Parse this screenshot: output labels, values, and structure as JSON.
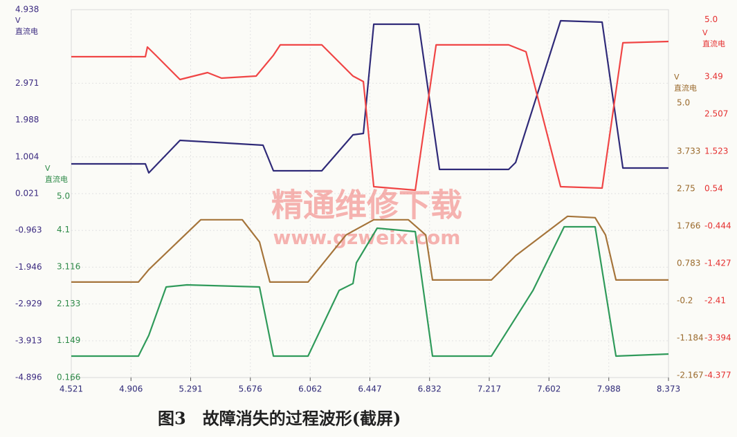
{
  "chart_data": {
    "type": "line",
    "title": "图3　故障消失的过程波形(截屏)",
    "annotations": [
      "精通维修下载",
      "www.gzweix.com"
    ],
    "grid": true,
    "xlim": [
      4.521,
      8.373
    ],
    "xticks": [
      4.521,
      4.906,
      5.291,
      5.676,
      6.062,
      6.447,
      6.832,
      7.217,
      7.602,
      7.988,
      8.373
    ],
    "y_axes": [
      {
        "unit": "V",
        "quantity": "直流电",
        "color": "#3b2a80",
        "ylim": [
          -4.896,
          4.938
        ],
        "yticks": [
          4.938,
          2.971,
          1.988,
          1.004,
          0.021,
          -0.963,
          -1.946,
          -2.929,
          -3.913,
          -4.896
        ]
      },
      {
        "unit": "V",
        "quantity": "直流电",
        "color": "#e53030",
        "ylim": [
          -4.43,
          5.26
        ],
        "yticks": [
          {
            "value": 5,
            "label": "5.0"
          },
          3.49,
          2.507,
          1.523,
          0.54,
          -0.444,
          -1.427,
          -2.41,
          -3.394,
          -4.377
        ]
      },
      {
        "unit": "V",
        "quantity": "直流电",
        "color": "#9a6a2c",
        "ylim": [
          -2.22,
          7.46
        ],
        "yticks": [
          {
            "value": 5,
            "label": "5.0"
          },
          3.733,
          2.75,
          1.766,
          0.783,
          -0.2,
          -1.184,
          -2.167
        ]
      },
      {
        "unit": "V",
        "quantity": "直流电",
        "color": "#2e8a48",
        "ylim": [
          0.166,
          9.98
        ],
        "yticks": [
          {
            "value": 5,
            "label": "5.0"
          },
          4.1,
          3.116,
          2.133,
          1.149,
          0.166
        ]
      }
    ],
    "series": [
      {
        "color": "#2f2a78",
        "axis": 0,
        "x": [
          4.521,
          4.999,
          5.021,
          5.222,
          5.758,
          5.825,
          6.137,
          6.338,
          6.405,
          6.472,
          6.762,
          6.896,
          7.342,
          7.387,
          7.677,
          7.945,
          8.079,
          8.373
        ],
        "values": [
          0.816,
          0.816,
          0.576,
          1.444,
          1.315,
          0.631,
          0.631,
          1.592,
          1.629,
          4.55,
          4.55,
          0.668,
          0.668,
          0.853,
          4.642,
          4.605,
          0.705,
          0.705
        ]
      },
      {
        "color": "#f04545",
        "axis": 1,
        "x": [
          4.521,
          4.999,
          5.012,
          5.066,
          5.222,
          5.4,
          5.49,
          5.713,
          5.825,
          5.869,
          6.137,
          6.338,
          6.405,
          6.472,
          6.74,
          6.874,
          7.342,
          7.454,
          7.677,
          7.945,
          8.079,
          8.373
        ],
        "values": [
          4.022,
          4.022,
          4.277,
          4.059,
          3.421,
          3.603,
          3.457,
          3.512,
          4.059,
          4.332,
          4.332,
          3.512,
          3.366,
          0.597,
          0.506,
          4.332,
          4.332,
          4.15,
          0.597,
          0.56,
          4.387,
          4.423
        ]
      },
      {
        "color": "#a5743a",
        "axis": 2,
        "x": [
          4.521,
          4.954,
          5.021,
          5.356,
          5.624,
          5.735,
          5.802,
          6.048,
          6.293,
          6.472,
          6.695,
          6.807,
          6.851,
          7.231,
          7.387,
          7.722,
          7.9,
          7.967,
          8.034,
          8.373
        ],
        "values": [
          0.292,
          0.292,
          0.62,
          1.932,
          1.932,
          1.349,
          0.292,
          0.292,
          1.531,
          1.932,
          1.932,
          1.531,
          0.347,
          0.347,
          0.985,
          2.023,
          1.987,
          1.531,
          0.347,
          0.347
        ]
      },
      {
        "color": "#2f9a5a",
        "axis": 3,
        "x": [
          4.521,
          4.954,
          5.021,
          5.133,
          5.267,
          5.735,
          5.825,
          6.048,
          6.249,
          6.338,
          6.36,
          6.494,
          6.74,
          6.851,
          7.231,
          7.499,
          7.7,
          7.9,
          8.034,
          8.373
        ],
        "values": [
          0.738,
          0.738,
          1.291,
          2.583,
          2.638,
          2.583,
          0.738,
          0.738,
          2.491,
          2.675,
          3.229,
          4.151,
          4.059,
          0.738,
          0.738,
          2.491,
          4.188,
          4.188,
          0.738,
          0.793
        ]
      }
    ]
  }
}
